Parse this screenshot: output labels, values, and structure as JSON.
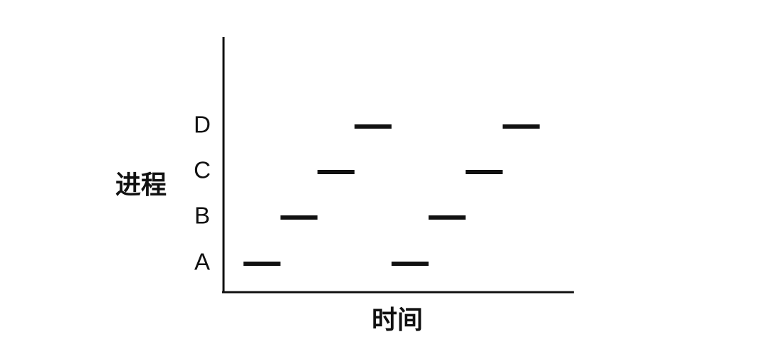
{
  "chart_data": {
    "type": "timeline",
    "xlabel": "时间",
    "ylabel": "进程",
    "processes": [
      "A",
      "B",
      "C",
      "D"
    ],
    "slices": [
      {
        "process": "A",
        "start": 0,
        "end": 1
      },
      {
        "process": "B",
        "start": 1,
        "end": 2
      },
      {
        "process": "C",
        "start": 2,
        "end": 3
      },
      {
        "process": "D",
        "start": 3,
        "end": 4
      },
      {
        "process": "A",
        "start": 4,
        "end": 5
      },
      {
        "process": "B",
        "start": 5,
        "end": 6
      },
      {
        "process": "C",
        "start": 6,
        "end": 7
      },
      {
        "process": "D",
        "start": 7,
        "end": 8
      }
    ],
    "color": "#111111"
  }
}
